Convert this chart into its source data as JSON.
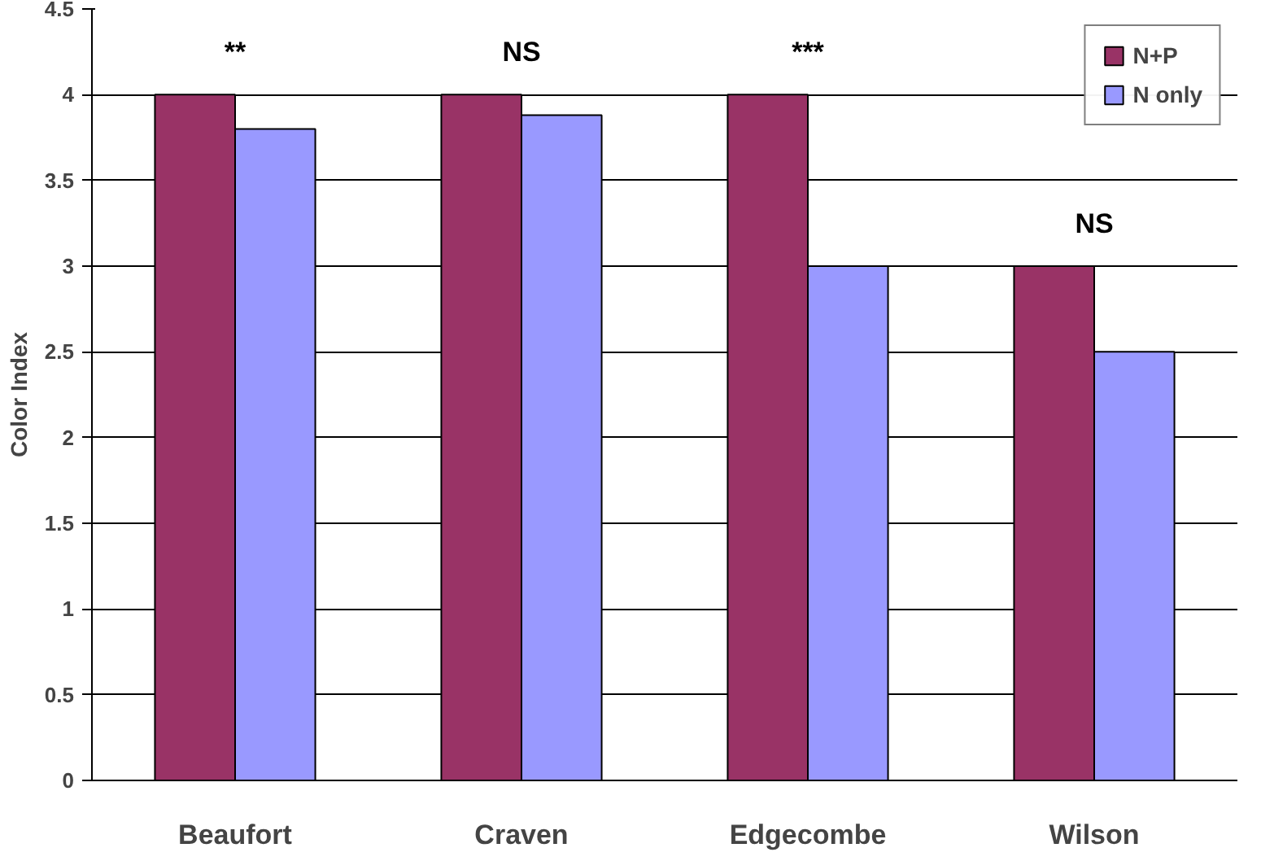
{
  "chart_data": {
    "type": "bar",
    "ylabel": "Color Index",
    "categories": [
      "Beaufort",
      "Craven",
      "Edgecombe",
      "Wilson"
    ],
    "series": [
      {
        "name": "N+P",
        "color": "#993366",
        "values": [
          4,
          4,
          4,
          3
        ]
      },
      {
        "name": "N only",
        "color": "#9999ff",
        "values": [
          3.8,
          3.88,
          3,
          2.5
        ]
      }
    ],
    "ylim": [
      0,
      4.5
    ],
    "yticks": [
      0,
      0.5,
      1,
      1.5,
      2,
      2.5,
      3,
      3.5,
      4,
      4.5
    ],
    "grid": "y",
    "legend": "top right",
    "annotations": [
      "**",
      "NS",
      "***",
      "NS"
    ]
  }
}
